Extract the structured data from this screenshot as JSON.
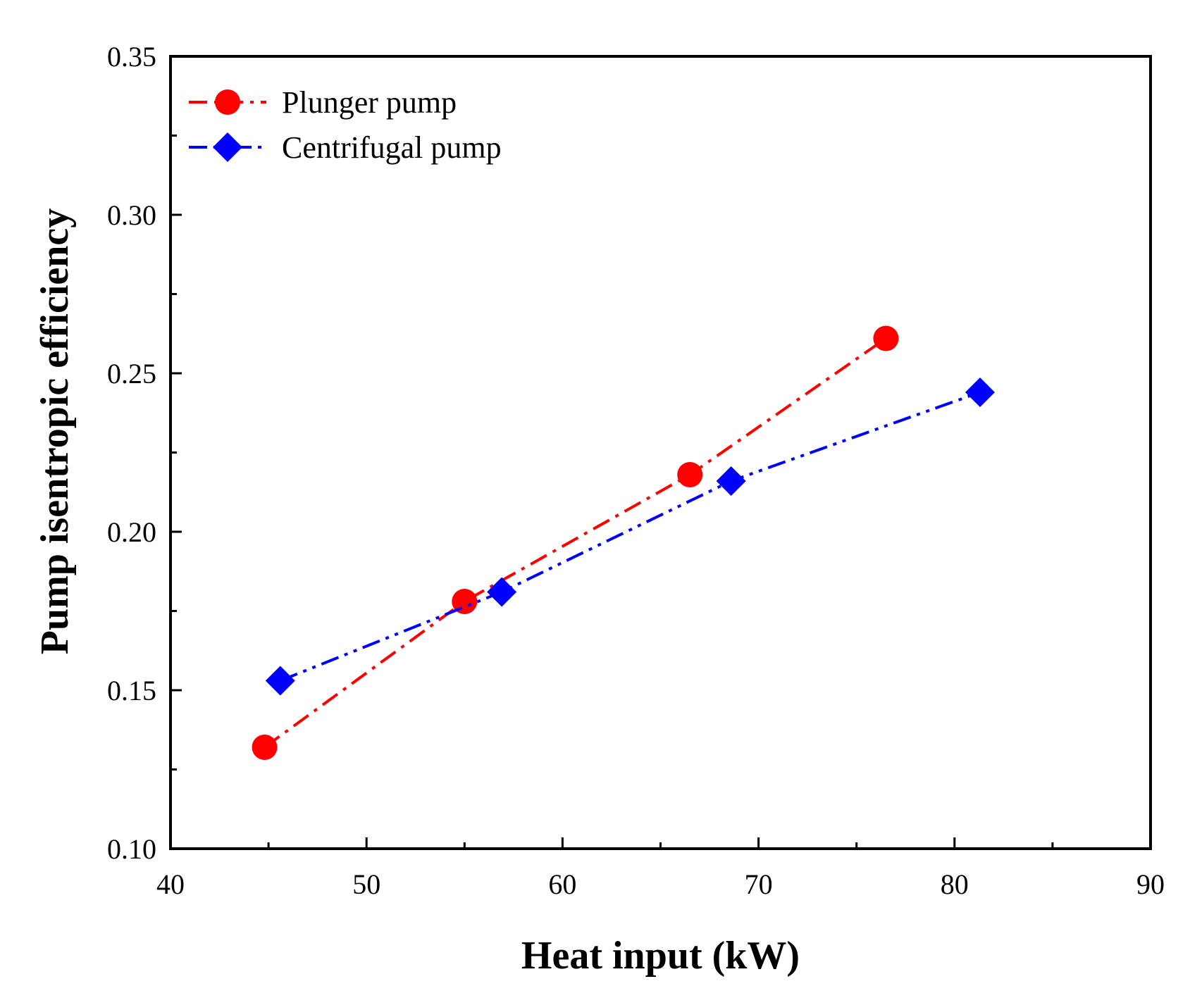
{
  "chart_data": {
    "type": "line",
    "title": "",
    "xlabel": "Heat input (kW)",
    "ylabel": "Pump isentropic efficiency",
    "xlim": [
      40,
      90
    ],
    "ylim": [
      0.1,
      0.35
    ],
    "x_major_ticks": [
      40,
      50,
      60,
      70,
      80,
      90
    ],
    "x_tick_labels": [
      "40",
      "50",
      "60",
      "70",
      "80",
      "90"
    ],
    "x_minor_ticks": [
      45,
      55,
      65,
      75,
      85
    ],
    "y_major_ticks": [
      0.1,
      0.15,
      0.2,
      0.25,
      0.3,
      0.35
    ],
    "y_tick_labels": [
      "0.10",
      "0.15",
      "0.20",
      "0.25",
      "0.30",
      "0.35"
    ],
    "y_minor_ticks": [
      0.125,
      0.175,
      0.225,
      0.275,
      0.325
    ],
    "grid": false,
    "legend_position": "top-left",
    "series": [
      {
        "name": "Plunger pump",
        "color": "#ff0000",
        "marker": "circle",
        "line_style": "dash-dot",
        "x": [
          44.8,
          55.0,
          66.5,
          76.5
        ],
        "y": [
          0.132,
          0.178,
          0.218,
          0.261
        ]
      },
      {
        "name": "Centrifugal pump",
        "color": "#0000ff",
        "marker": "diamond",
        "line_style": "dash-dot-dot",
        "x": [
          45.6,
          56.9,
          68.6,
          81.3
        ],
        "y": [
          0.153,
          0.181,
          0.216,
          0.244
        ]
      }
    ]
  }
}
